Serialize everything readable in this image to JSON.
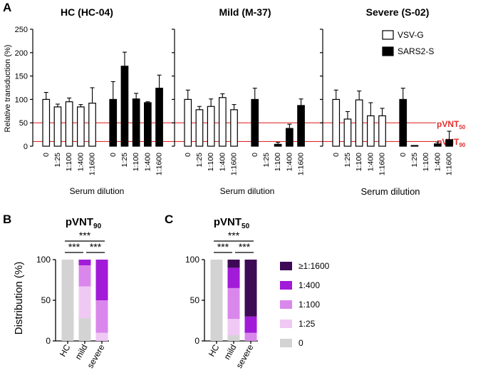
{
  "panel_labels": {
    "a": "A",
    "b": "B",
    "c": "C"
  },
  "reference_labels": {
    "pvnt50_main": "pVNT",
    "pvnt50_sub": "50",
    "pvnt90_main": "pVNT",
    "pvnt90_sub": "90"
  },
  "colors": {
    "vsv": "#ffffff",
    "sars": "#000000",
    "line": "#e0302e",
    "ref_text": "#e0302e",
    "c0": "#d3d3d3",
    "c25": "#f0c8f4",
    "c100": "#da87ec",
    "c400": "#a21bd8",
    "c1600": "#3e0a56"
  },
  "chart_data": [
    {
      "type": "bar",
      "panel": "A",
      "ylabel": "Relative transduction (%)",
      "xlabel": "Serum dilution",
      "ylim": [
        0,
        250
      ],
      "yticks": [
        "0",
        "50",
        "100",
        "150",
        "200",
        "250"
      ],
      "categories": [
        "0",
        "1:25",
        "1:100",
        "1:400",
        "1:1600"
      ],
      "reference_lines": [
        50,
        10
      ],
      "legend": [
        "VSV-G",
        "SARS2-S"
      ],
      "subplots": [
        {
          "title": "HC (HC-04)",
          "series": [
            {
              "name": "VSV-G",
              "values": [
                100,
                84,
                95,
                84,
                92
              ],
              "errors": [
                15,
                6,
                8,
                5,
                33
              ]
            },
            {
              "name": "SARS2-S",
              "values": [
                100,
                171,
                101,
                93,
                124
              ],
              "errors": [
                38,
                30,
                12,
                2,
                28
              ]
            }
          ]
        },
        {
          "title": "Mild (M-37)",
          "series": [
            {
              "name": "VSV-G",
              "values": [
                100,
                78,
                85,
                104,
                78
              ],
              "errors": [
                20,
                7,
                16,
                8,
                11
              ]
            },
            {
              "name": "SARS2-S",
              "values": [
                100,
                0,
                4,
                38,
                87
              ],
              "errors": [
                24,
                0,
                4,
                9,
                14
              ]
            }
          ]
        },
        {
          "title": "Severe (S-02)",
          "series": [
            {
              "name": "VSV-G",
              "values": [
                100,
                58,
                99,
                65,
                65
              ],
              "errors": [
                20,
                16,
                19,
                28,
                16
              ]
            },
            {
              "name": "SARS2-S",
              "values": [
                100,
                1,
                0,
                5,
                14
              ],
              "errors": [
                24,
                0,
                0,
                4,
                18
              ]
            }
          ]
        }
      ]
    },
    {
      "type": "bar",
      "stacked": true,
      "panel": "B",
      "title_main": "pVNT",
      "title_sub": "90",
      "ylabel": "Distribution (%)",
      "ylim": [
        0,
        100
      ],
      "yticks": [
        "0",
        "50",
        "100"
      ],
      "categories": [
        "HC",
        "mild",
        "severe"
      ],
      "significance": [
        "***",
        "***",
        "***"
      ],
      "series": [
        {
          "name": "0",
          "values": [
            100,
            28,
            0
          ]
        },
        {
          "name": "1:25",
          "values": [
            0,
            39,
            10
          ]
        },
        {
          "name": "1:100",
          "values": [
            0,
            26,
            40
          ]
        },
        {
          "name": "1:400",
          "values": [
            0,
            7,
            50
          ]
        },
        {
          "name": "≥1:1600",
          "values": [
            0,
            0,
            0
          ]
        }
      ]
    },
    {
      "type": "bar",
      "stacked": true,
      "panel": "C",
      "title_main": "pVNT",
      "title_sub": "50",
      "ylabel": "",
      "ylim": [
        0,
        100
      ],
      "yticks": [
        "0",
        "50",
        "100"
      ],
      "categories": [
        "HC",
        "mild",
        "severe"
      ],
      "significance": [
        "***",
        "***",
        "***"
      ],
      "legend": [
        "≥1:1600",
        "1:400",
        "1:100",
        "1:25",
        "0"
      ],
      "series": [
        {
          "name": "0",
          "values": [
            100,
            7,
            0
          ]
        },
        {
          "name": "1:25",
          "values": [
            0,
            20,
            0
          ]
        },
        {
          "name": "1:100",
          "values": [
            0,
            38,
            10
          ]
        },
        {
          "name": "1:400",
          "values": [
            0,
            25,
            20
          ]
        },
        {
          "name": "≥1:1600",
          "values": [
            0,
            10,
            70
          ]
        }
      ]
    }
  ]
}
